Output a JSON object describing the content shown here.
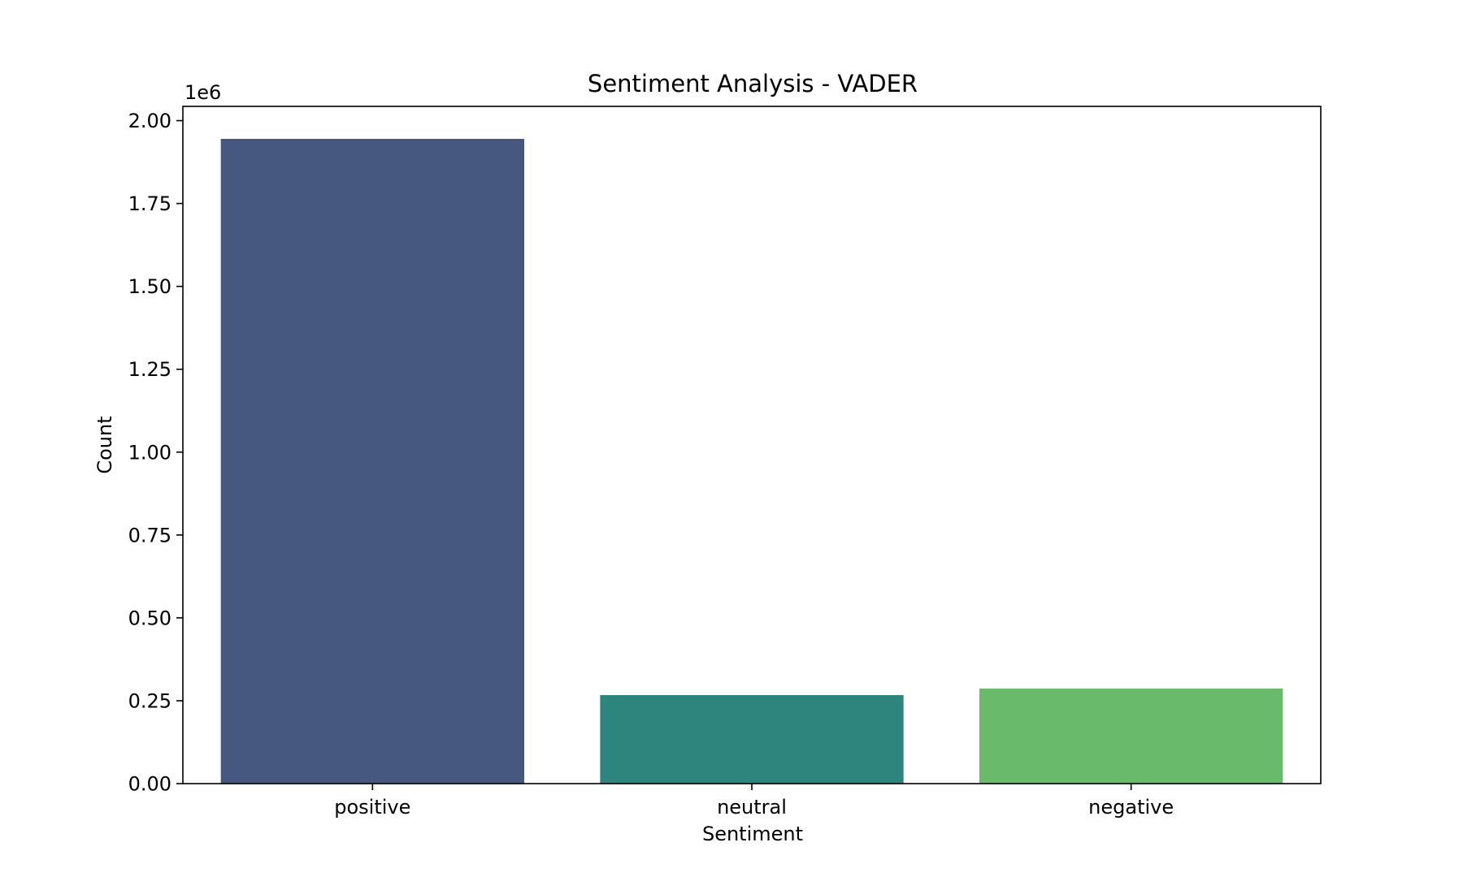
{
  "chart_data": {
    "type": "bar",
    "title": "Sentiment Analysis - VADER",
    "xlabel": "Sentiment",
    "ylabel": "Count",
    "y_offset_label": "1e6",
    "y_multiplier": 1000000,
    "categories": [
      "positive",
      "neutral",
      "negative"
    ],
    "values": [
      1945000,
      267000,
      287000
    ],
    "colors": [
      "#46587f",
      "#2e857e",
      "#6aba6c"
    ],
    "ylim": [
      0,
      2043000
    ],
    "yticks": [
      0,
      0.25,
      0.5,
      0.75,
      1.0,
      1.25,
      1.5,
      1.75,
      2.0
    ],
    "ytick_labels": [
      "0.00",
      "0.25",
      "0.50",
      "0.75",
      "1.00",
      "1.25",
      "1.50",
      "1.75",
      "2.00"
    ],
    "grid": false,
    "legend": "none"
  }
}
